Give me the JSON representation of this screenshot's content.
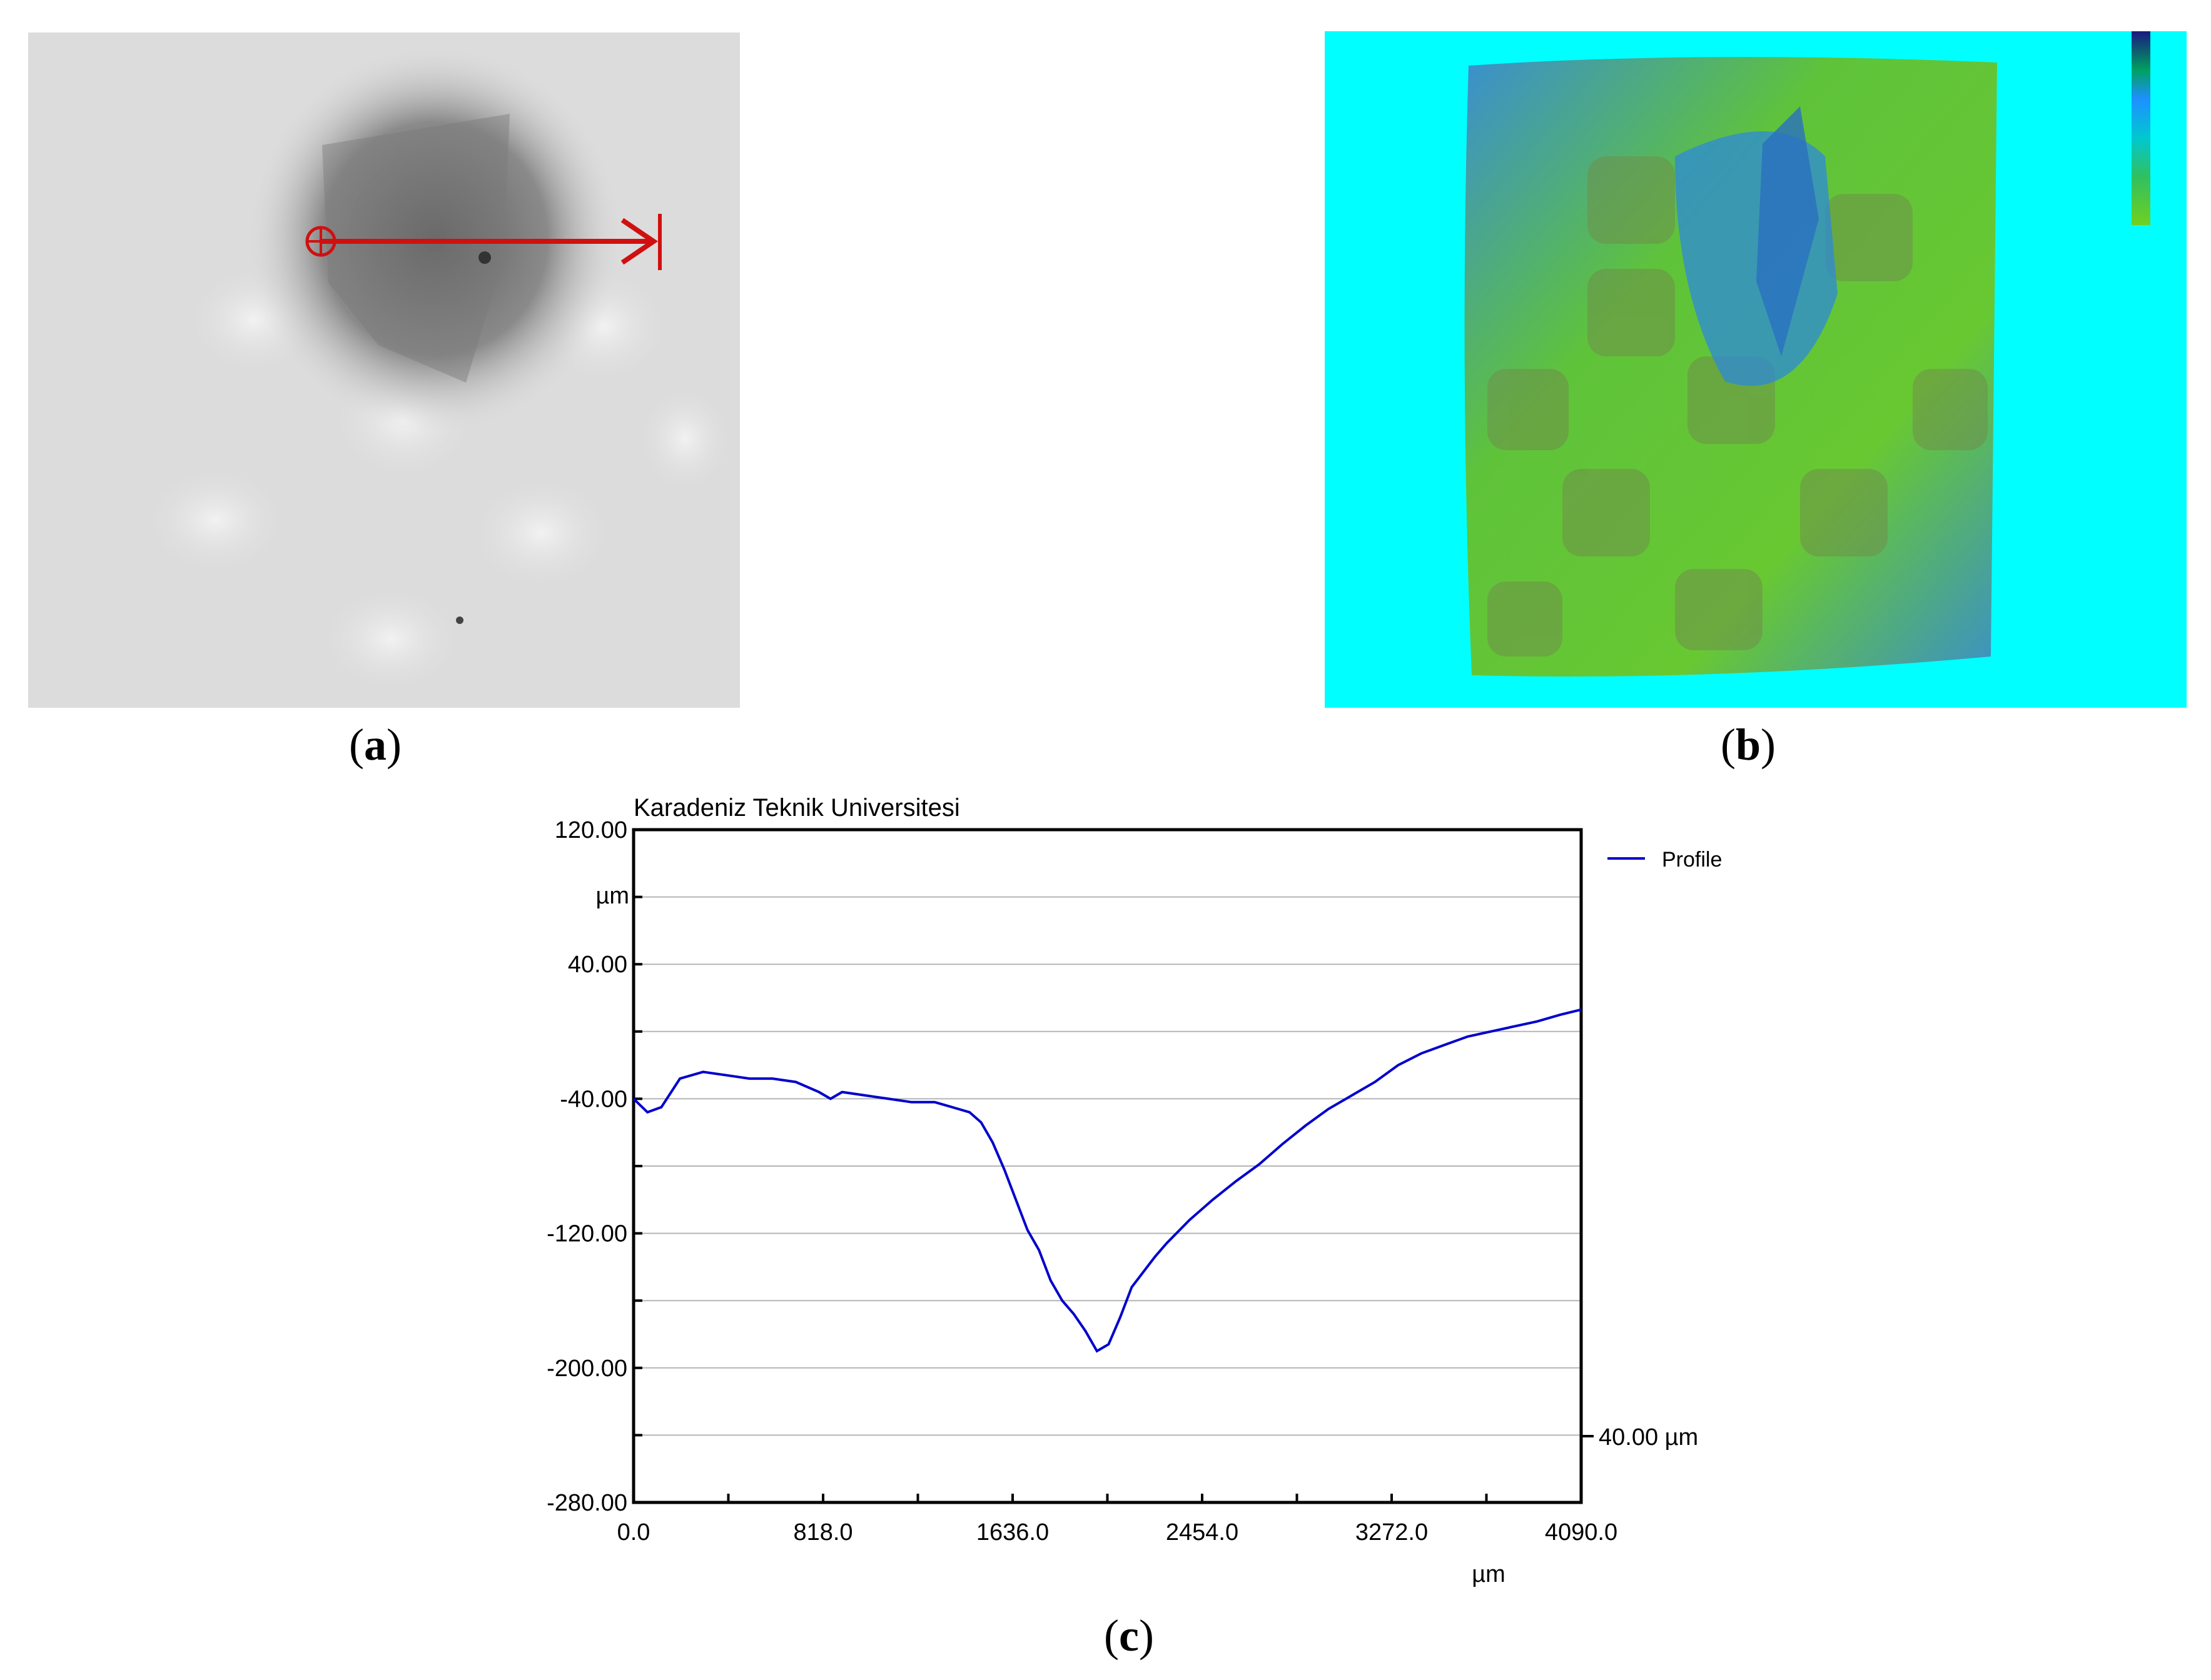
{
  "captions": {
    "a": "a",
    "b": "b",
    "c": "c"
  },
  "panel_a": {
    "description_marker": "profile-line",
    "line_color": "#d01010"
  },
  "panel_b": {
    "background_color": "#00ffff",
    "colorbar_ticks": [
      "0",
      "-50",
      "-100",
      "-150",
      "-200"
    ]
  },
  "chart_data": {
    "type": "line",
    "title": "Karadeniz Teknik Universitesi",
    "xlabel": "µm",
    "ylabel": "µm",
    "xlim": [
      0,
      4090
    ],
    "ylim": [
      -280,
      120
    ],
    "x_ticks": [
      "0.0",
      "818.0",
      "1636.0",
      "2454.0",
      "3272.0",
      "4090.0"
    ],
    "y_ticks": [
      "120.00",
      "40.00",
      "-40.00",
      "-120.00",
      "-200.00",
      "-280.00"
    ],
    "right_annotation": "40.00 µm",
    "legend_position": "top-right",
    "grid": true,
    "series": [
      {
        "name": "Profile",
        "color": "#0000cc",
        "x": [
          0,
          60,
          120,
          200,
          300,
          400,
          500,
          600,
          700,
          800,
          850,
          900,
          1000,
          1100,
          1200,
          1300,
          1400,
          1450,
          1500,
          1550,
          1600,
          1650,
          1700,
          1750,
          1800,
          1850,
          1900,
          1950,
          2000,
          2050,
          2100,
          2150,
          2200,
          2250,
          2300,
          2400,
          2500,
          2600,
          2700,
          2800,
          2900,
          3000,
          3100,
          3200,
          3300,
          3400,
          3500,
          3600,
          3700,
          3800,
          3900,
          4000,
          4090
        ],
        "y": [
          -40,
          -48,
          -45,
          -28,
          -24,
          -26,
          -28,
          -28,
          -30,
          -36,
          -40,
          -36,
          -38,
          -40,
          -42,
          -42,
          -46,
          -48,
          -54,
          -66,
          -82,
          -100,
          -118,
          -130,
          -148,
          -160,
          -168,
          -178,
          -190,
          -186,
          -170,
          -152,
          -143,
          -134,
          -126,
          -112,
          -100,
          -89,
          -79,
          -67,
          -56,
          -46,
          -38,
          -30,
          -20,
          -13,
          -8,
          -3,
          0,
          3,
          6,
          10,
          13
        ]
      }
    ]
  }
}
